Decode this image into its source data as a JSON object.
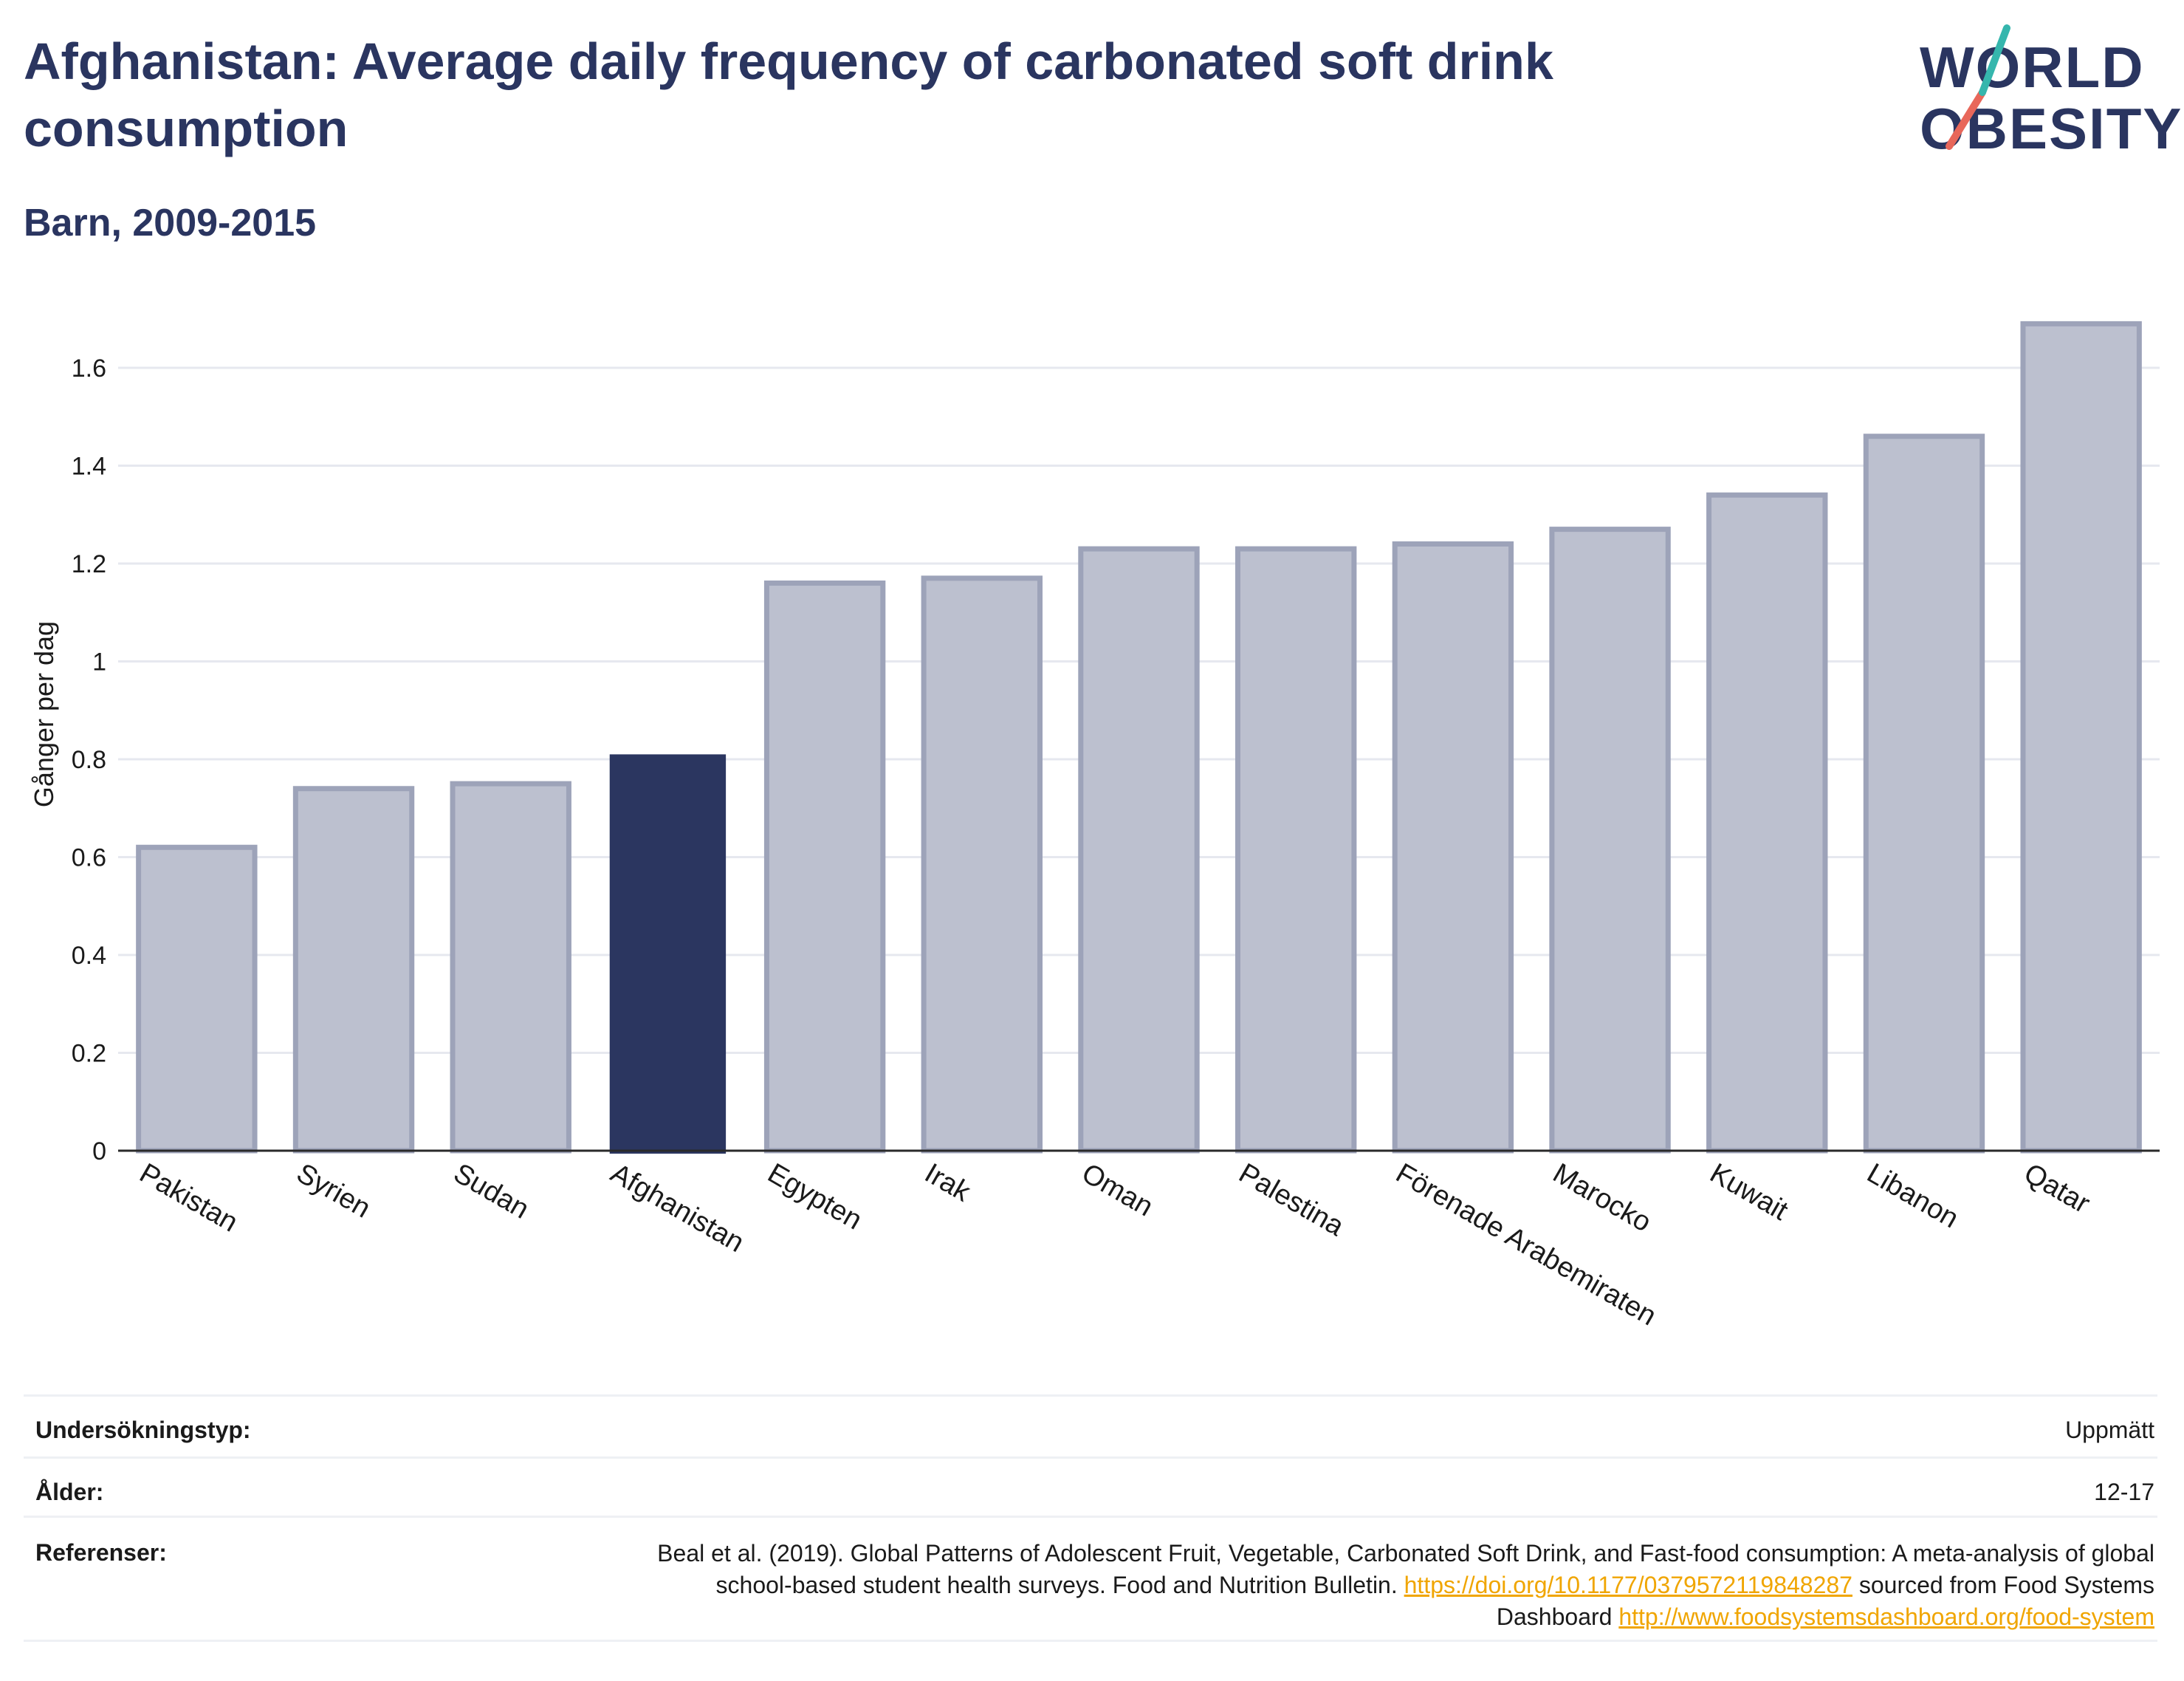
{
  "title": "Afghanistan: Average daily frequency of carbonated soft drink consumption",
  "subtitle": "Barn, 2009-2015",
  "logo": {
    "line1": "WORLD",
    "line2": "OBESITY"
  },
  "colors": {
    "highlight": "#2b3660",
    "bar": "#bcc0cf",
    "bar_edge": "#9da3b9",
    "grid": "#e6e8ef",
    "link": "#f0a500"
  },
  "chart_data": {
    "type": "bar",
    "categories": [
      "Pakistan",
      "Syrien",
      "Sudan",
      "Afghanistan",
      "Egypten",
      "Irak",
      "Oman",
      "Palestina",
      "Förenade Arabemiraten",
      "Marocko",
      "Kuwait",
      "Libanon",
      "Qatar"
    ],
    "values": [
      0.62,
      0.74,
      0.75,
      0.81,
      1.16,
      1.17,
      1.23,
      1.23,
      1.24,
      1.27,
      1.34,
      1.46,
      1.69
    ],
    "highlight": "Afghanistan",
    "ylabel": "Gånger per dag",
    "xlabel": "",
    "ylim": [
      0,
      1.75
    ],
    "yticks": [
      0,
      0.2,
      0.4,
      0.6,
      0.8,
      1,
      1.2,
      1.4,
      1.6
    ],
    "ytick_labels": [
      "0",
      "0.2",
      "0.4",
      "0.6",
      "0.8",
      "1",
      "1.2",
      "1.4",
      "1.6"
    ],
    "grid": true
  },
  "meta": {
    "survey_label": "Undersökningstyp:",
    "survey_value": "Uppmätt",
    "age_label": "Ålder:",
    "age_value": "12-17",
    "ref_label": "Referenser:",
    "ref_text1": "Beal et al. (2019). Global Patterns of Adolescent Fruit, Vegetable, Carbonated Soft Drink, and Fast-food consumption: A meta-analysis of global school-based student health surveys. Food and Nutrition Bulletin.",
    "ref_link1": "https://doi.org/10.1177/0379572119848287",
    "ref_text2": "sourced from Food Systems Dashboard",
    "ref_link2": "http://www.foodsystemsdashboard.org/food-system"
  }
}
